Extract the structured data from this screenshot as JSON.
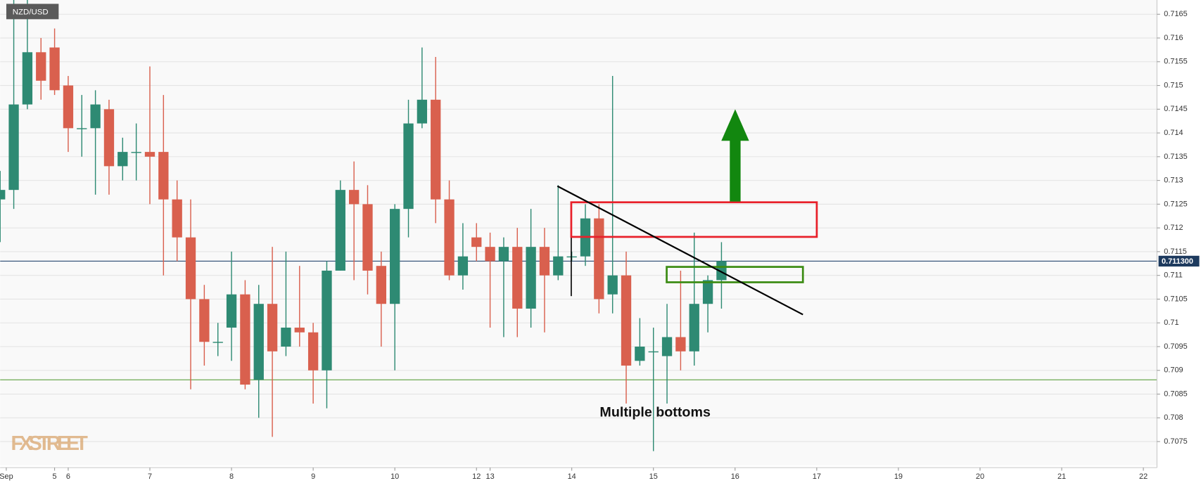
{
  "chart_data": {
    "type": "candlestick",
    "title": "NZD/USD",
    "up_color": "#2e8a73",
    "down_color": "#d9604e",
    "grid": true,
    "x": [
      0,
      1,
      2,
      3,
      4,
      5,
      6,
      7,
      8,
      9,
      10,
      11,
      12,
      13,
      14,
      15,
      16,
      17,
      18,
      19,
      20,
      21,
      22,
      23,
      24,
      25,
      26,
      27,
      28,
      29,
      30,
      31,
      32,
      33,
      34,
      35,
      36,
      37,
      38,
      39,
      40,
      41,
      42,
      43,
      44,
      45,
      46,
      47,
      48,
      49,
      50,
      51,
      52,
      53
    ],
    "open": [
      0.7126,
      0.7128,
      0.7146,
      0.7157,
      0.7158,
      0.715,
      0.7141,
      0.7141,
      0.7145,
      0.7133,
      0.7136,
      0.7136,
      0.7136,
      0.7126,
      0.7118,
      0.7105,
      0.7096,
      0.7099,
      0.7106,
      0.7088,
      0.7104,
      0.7095,
      0.7099,
      0.7098,
      0.709,
      0.7111,
      0.7128,
      0.7125,
      0.7112,
      0.7104,
      0.7124,
      0.7142,
      0.7147,
      0.7126,
      0.711,
      0.7118,
      0.7116,
      0.7113,
      0.7116,
      0.7103,
      0.7116,
      0.711,
      0.7114,
      0.7114,
      0.7122,
      0.7106,
      0.711,
      0.7092,
      0.7094,
      0.7093,
      0.7097,
      0.7094,
      0.7104,
      0.7109
    ],
    "high": [
      0.7132,
      0.7168,
      0.7168,
      0.716,
      0.7162,
      0.7152,
      0.7148,
      0.7149,
      0.7147,
      0.7139,
      0.7142,
      0.7154,
      0.7148,
      0.713,
      0.7126,
      0.7108,
      0.71,
      0.7115,
      0.7109,
      0.7108,
      0.7116,
      0.7115,
      0.7112,
      0.71,
      0.7113,
      0.713,
      0.7134,
      0.7129,
      0.7115,
      0.7125,
      0.7147,
      0.7158,
      0.7156,
      0.713,
      0.7121,
      0.7121,
      0.7119,
      0.7118,
      0.712,
      0.7124,
      0.712,
      0.7129,
      0.7115,
      0.7125,
      0.7125,
      0.7152,
      0.7115,
      0.7101,
      0.7099,
      0.7104,
      0.7111,
      0.7119,
      0.711,
      0.7117
    ],
    "low": [
      0.7117,
      0.7124,
      0.7145,
      0.7147,
      0.7148,
      0.7136,
      0.7135,
      0.7127,
      0.7127,
      0.713,
      0.713,
      0.7125,
      0.711,
      0.7113,
      0.7086,
      0.7091,
      0.7093,
      0.7092,
      0.7086,
      0.708,
      0.7076,
      0.7093,
      0.7095,
      0.7083,
      0.7082,
      0.7111,
      0.7109,
      0.7106,
      0.7095,
      0.709,
      0.7118,
      0.7141,
      0.7121,
      0.7109,
      0.7107,
      0.7113,
      0.7099,
      0.7097,
      0.7097,
      0.7099,
      0.7098,
      0.7109,
      0.7113,
      0.7112,
      0.7102,
      0.7102,
      0.7083,
      0.7091,
      0.7073,
      0.7083,
      0.709,
      0.7091,
      0.7098,
      0.7103
    ],
    "close": [
      0.7128,
      0.7146,
      0.7157,
      0.7151,
      0.7149,
      0.7141,
      0.7141,
      0.7146,
      0.7133,
      0.7136,
      0.7136,
      0.7135,
      0.7126,
      0.7118,
      0.7105,
      0.7096,
      0.7096,
      0.7106,
      0.7087,
      0.7104,
      0.7094,
      0.7099,
      0.7098,
      0.709,
      0.7111,
      0.7128,
      0.7125,
      0.7111,
      0.7104,
      0.7124,
      0.7142,
      0.7147,
      0.7126,
      0.711,
      0.7114,
      0.7116,
      0.7113,
      0.7116,
      0.7103,
      0.7116,
      0.711,
      0.7114,
      0.7114,
      0.7122,
      0.7105,
      0.711,
      0.7091,
      0.7095,
      0.7094,
      0.7097,
      0.7094,
      0.7104,
      0.7109,
      0.7113
    ],
    "xlim": [
      0,
      85
    ],
    "ylim": [
      0.707,
      0.7168
    ],
    "yticks": [
      0.7075,
      0.708,
      0.7085,
      0.709,
      0.7095,
      0.71,
      0.7105,
      0.711,
      0.7115,
      0.712,
      0.7125,
      0.713,
      0.7135,
      0.714,
      0.7145,
      0.715,
      0.7155,
      0.716,
      0.7165
    ],
    "xticks": [
      {
        "value": 0.45,
        "label": "Sep"
      },
      {
        "value": 4,
        "label": "5"
      },
      {
        "value": 5,
        "label": "6"
      },
      {
        "value": 11,
        "label": "7"
      },
      {
        "value": 17,
        "label": "8"
      },
      {
        "value": 23,
        "label": "9"
      },
      {
        "value": 29,
        "label": "10"
      },
      {
        "value": 35,
        "label": "12"
      },
      {
        "value": 36,
        "label": "13"
      },
      {
        "value": 42,
        "label": "14"
      },
      {
        "value": 48,
        "label": "15"
      },
      {
        "value": 54,
        "label": "16"
      },
      {
        "value": 60,
        "label": "17"
      },
      {
        "value": 66,
        "label": "19"
      },
      {
        "value": 72,
        "label": "20"
      },
      {
        "value": 78,
        "label": "21"
      },
      {
        "value": 84,
        "label": "22"
      }
    ],
    "price_line": {
      "value": 0.7113,
      "label": "0.711300"
    },
    "support_line": {
      "value": 0.7088,
      "color": "#6aa84f"
    },
    "annotation": "Multiple bottoms",
    "watermark": "FXSTREET"
  }
}
